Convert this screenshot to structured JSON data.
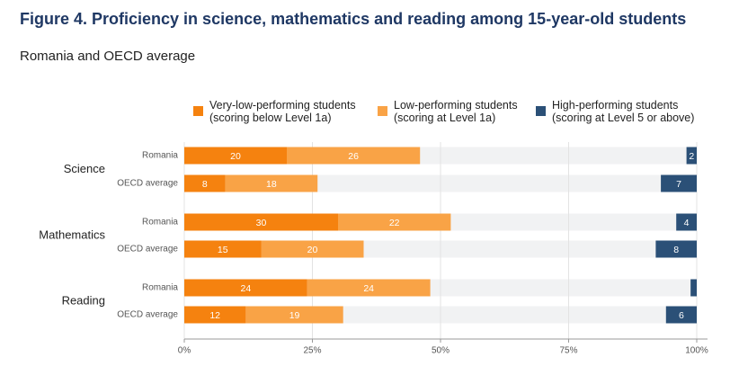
{
  "chart_data": {
    "type": "stacked-barh",
    "title": "Figure 4. Proficiency in science, mathematics and reading among 15-year-old students",
    "subtitle": "Romania and OECD average",
    "groups": [
      "Science",
      "Mathematics",
      "Reading"
    ],
    "categories": [
      "Romania",
      "OECD average",
      "Romania",
      "OECD average",
      "Romania",
      "OECD average"
    ],
    "series": [
      {
        "name": "Very-low-performing students\n(scoring below Level 1a)",
        "color": "#f5820f",
        "values": [
          20,
          8,
          30,
          15,
          24,
          12
        ],
        "anchor": "left"
      },
      {
        "name": "Low-performing students\n(scoring at Level 1a)",
        "color": "#f9a346",
        "values": [
          26,
          18,
          22,
          20,
          24,
          19
        ],
        "anchor": "left"
      },
      {
        "name": "High-performing students\n(scoring at Level 5 or above)",
        "color": "#2b5077",
        "values": [
          2,
          7,
          4,
          8,
          1.2,
          6
        ],
        "anchor": "right"
      }
    ],
    "xlim": [
      0,
      100
    ],
    "xticks": [
      {
        "value": 0,
        "label": "0%"
      },
      {
        "value": 25,
        "label": "25%"
      },
      {
        "value": 50,
        "label": "50%"
      },
      {
        "value": 75,
        "label": "75%"
      },
      {
        "value": 100,
        "label": "100%"
      }
    ],
    "grid": true
  }
}
